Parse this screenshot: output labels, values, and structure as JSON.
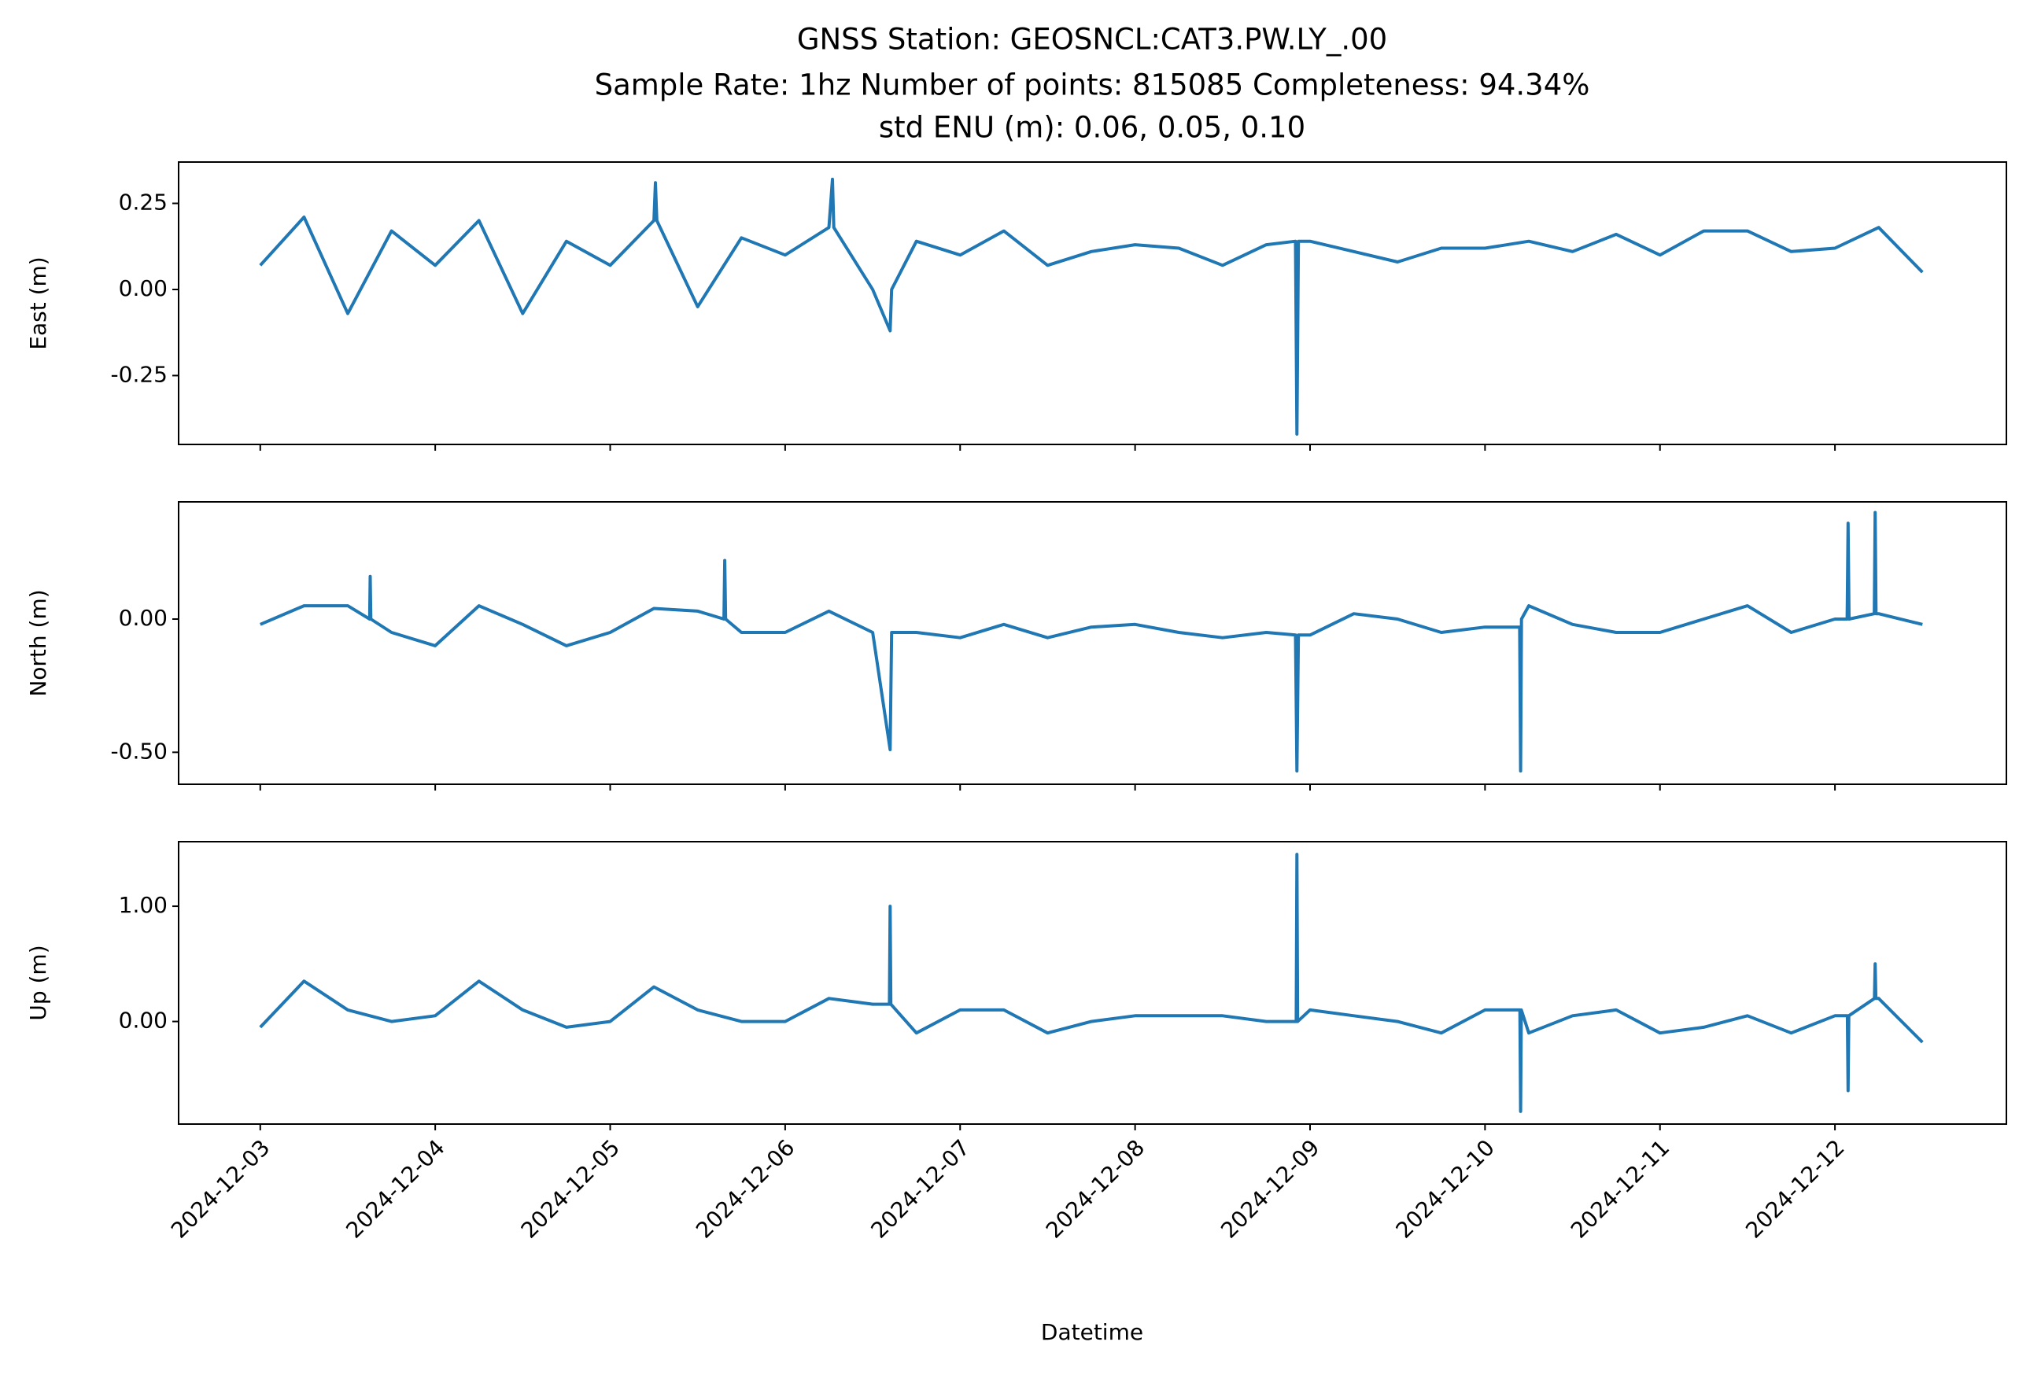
{
  "title": [
    "GNSS Station: GEOSNCL:CAT3.PW.LY_.00",
    "Sample Rate: 1hz   Number of points: 815085    Completeness:  94.34%",
    "std ENU (m):  0.06, 0.05, 0.10"
  ],
  "xlabel": "Datetime",
  "xlim": [
    "2024-12-02T12:48",
    "2024-12-12T23:31"
  ],
  "xticks": [
    "2024-12-03",
    "2024-12-04",
    "2024-12-05",
    "2024-12-06",
    "2024-12-07",
    "2024-12-08",
    "2024-12-09",
    "2024-12-10",
    "2024-12-11",
    "2024-12-12"
  ],
  "chart_data": [
    {
      "type": "line",
      "ylabel": "East (m)",
      "ylim": [
        -0.45,
        0.37
      ],
      "yticks": [
        0.25,
        {
          "value": 0,
          "label": "0.00"
        },
        -0.25
      ],
      "x": [
        "2024-12-03T00:00",
        "2024-12-03T06:00",
        "2024-12-03T12:00",
        "2024-12-03T18:00",
        "2024-12-04T00:00",
        "2024-12-04T06:00",
        "2024-12-04T12:00",
        "2024-12-04T18:00",
        "2024-12-05T00:00",
        "2024-12-05T06:00",
        "2024-12-05T06:12",
        "2024-12-05T06:24",
        "2024-12-05T12:00",
        "2024-12-05T18:00",
        "2024-12-06T00:00",
        "2024-12-06T06:00",
        "2024-12-06T06:29",
        "2024-12-06T06:40",
        "2024-12-06T12:00",
        "2024-12-06T14:24",
        "2024-12-06T14:36",
        "2024-12-06T18:00",
        "2024-12-07T00:00",
        "2024-12-07T06:00",
        "2024-12-07T12:00",
        "2024-12-07T18:00",
        "2024-12-08T00:00",
        "2024-12-08T06:00",
        "2024-12-08T12:00",
        "2024-12-08T18:00",
        "2024-12-08T22:00",
        "2024-12-08T22:12",
        "2024-12-08T22:24",
        "2024-12-09T00:00",
        "2024-12-09T06:00",
        "2024-12-09T12:00",
        "2024-12-09T18:00",
        "2024-12-10T00:00",
        "2024-12-10T06:00",
        "2024-12-10T12:00",
        "2024-12-10T18:00",
        "2024-12-11T00:00",
        "2024-12-11T06:00",
        "2024-12-11T12:00",
        "2024-12-11T18:00",
        "2024-12-12T00:00",
        "2024-12-12T06:00",
        "2024-12-12T12:00"
      ],
      "series": [
        {
          "color": "#1f77b4",
          "values": [
            0.07,
            0.21,
            -0.07,
            0.17,
            0.07,
            0.2,
            -0.07,
            0.14,
            0.07,
            0.2,
            0.31,
            0.2,
            -0.05,
            0.15,
            0.1,
            0.18,
            0.32,
            0.18,
            0.0,
            -0.12,
            0.0,
            0.14,
            0.1,
            0.17,
            0.07,
            0.11,
            0.13,
            0.12,
            0.07,
            0.13,
            0.14,
            -0.42,
            0.14,
            0.14,
            0.11,
            0.08,
            0.12,
            0.12,
            0.14,
            0.11,
            0.16,
            0.1,
            0.17,
            0.17,
            0.11,
            0.12,
            0.18,
            0.05
          ]
        }
      ]
    },
    {
      "type": "line",
      "ylabel": "North (m)",
      "ylim": [
        -0.62,
        0.44
      ],
      "yticks": [
        {
          "value": 0,
          "label": "0.00"
        },
        {
          "value": -0.5,
          "label": "-0.50"
        }
      ],
      "x": [
        "2024-12-03T00:00",
        "2024-12-03T06:00",
        "2024-12-03T12:00",
        "2024-12-03T15:00",
        "2024-12-03T15:05",
        "2024-12-03T15:10",
        "2024-12-03T18:00",
        "2024-12-04T00:00",
        "2024-12-04T06:00",
        "2024-12-04T12:00",
        "2024-12-04T18:00",
        "2024-12-05T00:00",
        "2024-12-05T06:00",
        "2024-12-05T12:00",
        "2024-12-05T15:36",
        "2024-12-05T15:43",
        "2024-12-05T15:50",
        "2024-12-05T18:00",
        "2024-12-06T00:00",
        "2024-12-06T06:00",
        "2024-12-06T12:00",
        "2024-12-06T14:24",
        "2024-12-06T14:36",
        "2024-12-06T18:00",
        "2024-12-07T00:00",
        "2024-12-07T06:00",
        "2024-12-07T12:00",
        "2024-12-07T18:00",
        "2024-12-08T00:00",
        "2024-12-08T06:00",
        "2024-12-08T12:00",
        "2024-12-08T18:00",
        "2024-12-08T22:00",
        "2024-12-08T22:12",
        "2024-12-08T22:24",
        "2024-12-09T00:00",
        "2024-12-09T06:00",
        "2024-12-09T12:00",
        "2024-12-09T18:00",
        "2024-12-10T00:00",
        "2024-12-10T04:45",
        "2024-12-10T04:53",
        "2024-12-10T05:00",
        "2024-12-10T06:00",
        "2024-12-10T12:00",
        "2024-12-10T18:00",
        "2024-12-11T00:00",
        "2024-12-11T06:00",
        "2024-12-11T12:00",
        "2024-12-11T18:00",
        "2024-12-12T00:00",
        "2024-12-12T01:40",
        "2024-12-12T01:48",
        "2024-12-12T01:56",
        "2024-12-12T05:24",
        "2024-12-12T05:31",
        "2024-12-12T05:38",
        "2024-12-12T06:00",
        "2024-12-12T12:00"
      ],
      "series": [
        {
          "color": "#1f77b4",
          "values": [
            -0.02,
            0.05,
            0.05,
            0.0,
            0.16,
            0.0,
            -0.05,
            -0.1,
            0.05,
            -0.02,
            -0.1,
            -0.05,
            0.04,
            0.03,
            0.0,
            0.22,
            0.0,
            -0.05,
            -0.05,
            0.03,
            -0.05,
            -0.49,
            -0.05,
            -0.05,
            -0.07,
            -0.02,
            -0.07,
            -0.03,
            -0.02,
            -0.05,
            -0.07,
            -0.05,
            -0.06,
            -0.57,
            -0.06,
            -0.06,
            0.02,
            0.0,
            -0.05,
            -0.03,
            -0.03,
            -0.57,
            0.0,
            0.05,
            -0.02,
            -0.05,
            -0.05,
            0.0,
            0.05,
            -0.05,
            0.0,
            0.0,
            0.36,
            0.0,
            0.02,
            0.4,
            0.02,
            0.02,
            -0.02
          ]
        }
      ]
    },
    {
      "type": "line",
      "ylabel": "Up (m)",
      "ylim": [
        -0.89,
        1.56
      ],
      "yticks": [
        {
          "value": 1,
          "label": "1.00"
        },
        {
          "value": 0,
          "label": "0.00"
        }
      ],
      "x": [
        "2024-12-03T00:00",
        "2024-12-03T06:00",
        "2024-12-03T12:00",
        "2024-12-03T18:00",
        "2024-12-04T00:00",
        "2024-12-04T06:00",
        "2024-12-04T12:00",
        "2024-12-04T18:00",
        "2024-12-05T00:00",
        "2024-12-05T06:00",
        "2024-12-05T12:00",
        "2024-12-05T18:00",
        "2024-12-06T00:00",
        "2024-12-06T06:00",
        "2024-12-06T12:00",
        "2024-12-06T14:18",
        "2024-12-06T14:24",
        "2024-12-06T14:30",
        "2024-12-06T18:00",
        "2024-12-07T00:00",
        "2024-12-07T06:00",
        "2024-12-07T12:00",
        "2024-12-07T18:00",
        "2024-12-08T00:00",
        "2024-12-08T06:00",
        "2024-12-08T12:00",
        "2024-12-08T18:00",
        "2024-12-08T22:06",
        "2024-12-08T22:12",
        "2024-12-08T22:18",
        "2024-12-09T00:00",
        "2024-12-09T06:00",
        "2024-12-09T12:00",
        "2024-12-09T18:00",
        "2024-12-10T00:00",
        "2024-12-10T04:47",
        "2024-12-10T04:53",
        "2024-12-10T04:59",
        "2024-12-10T06:00",
        "2024-12-10T12:00",
        "2024-12-10T18:00",
        "2024-12-11T00:00",
        "2024-12-11T06:00",
        "2024-12-11T12:00",
        "2024-12-11T18:00",
        "2024-12-12T00:00",
        "2024-12-12T01:42",
        "2024-12-12T01:48",
        "2024-12-12T01:54",
        "2024-12-12T05:25",
        "2024-12-12T05:31",
        "2024-12-12T05:37",
        "2024-12-12T06:00",
        "2024-12-12T12:00"
      ],
      "series": [
        {
          "color": "#1f77b4",
          "values": [
            -0.05,
            0.35,
            0.1,
            0.0,
            0.05,
            0.35,
            0.1,
            -0.05,
            0.0,
            0.3,
            0.1,
            0.0,
            0.0,
            0.2,
            0.15,
            0.15,
            1.0,
            0.15,
            -0.1,
            0.1,
            0.1,
            -0.1,
            0.0,
            0.05,
            0.05,
            0.05,
            0.0,
            0.0,
            1.45,
            0.0,
            0.1,
            0.05,
            0.0,
            -0.1,
            0.1,
            0.1,
            -0.78,
            0.1,
            -0.1,
            0.05,
            0.1,
            -0.1,
            -0.05,
            0.05,
            -0.1,
            0.05,
            0.05,
            -0.6,
            0.05,
            0.2,
            0.5,
            0.2,
            0.2,
            -0.18
          ]
        }
      ]
    }
  ]
}
